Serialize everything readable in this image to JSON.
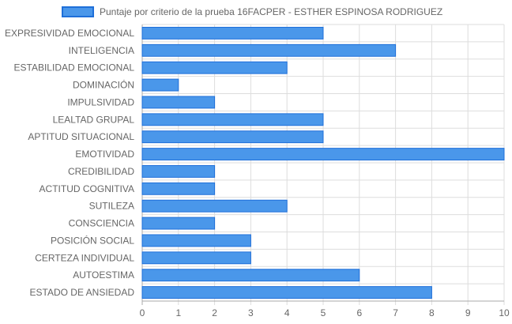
{
  "chart_data": {
    "type": "bar",
    "orientation": "horizontal",
    "categories": [
      "EXPRESIVIDAD EMOCIONAL",
      "INTELIGENCIA",
      "ESTABILIDAD EMOCIONAL",
      "DOMINACIÓN",
      "IMPULSIVIDAD",
      "LEALTAD GRUPAL",
      "APTITUD SITUACIONAL",
      "EMOTIVIDAD",
      "CREDIBILIDAD",
      "ACTITUD COGNITIVA",
      "SUTILEZA",
      "CONSCIENCIA",
      "POSICIÓN SOCIAL",
      "CERTEZA INDIVIDUAL",
      "AUTOESTIMA",
      "ESTADO DE ANSIEDAD"
    ],
    "series": [
      {
        "name": "Puntaje por criterio de la prueba 16FACPER - ESTHER ESPINOSA RODRIGUEZ",
        "values": [
          5,
          7,
          4,
          1,
          2,
          5,
          5,
          10,
          2,
          2,
          4,
          2,
          3,
          3,
          6,
          8
        ],
        "color": "#4a97ea",
        "border_color": "#1e6fd9"
      }
    ],
    "xlim": [
      0,
      10
    ],
    "x_ticks": [
      "0",
      "1",
      "2",
      "3",
      "4",
      "5",
      "6",
      "7",
      "8",
      "9",
      "10"
    ],
    "grid": true,
    "grid_color": "#dddddd",
    "legend_position": "top"
  }
}
